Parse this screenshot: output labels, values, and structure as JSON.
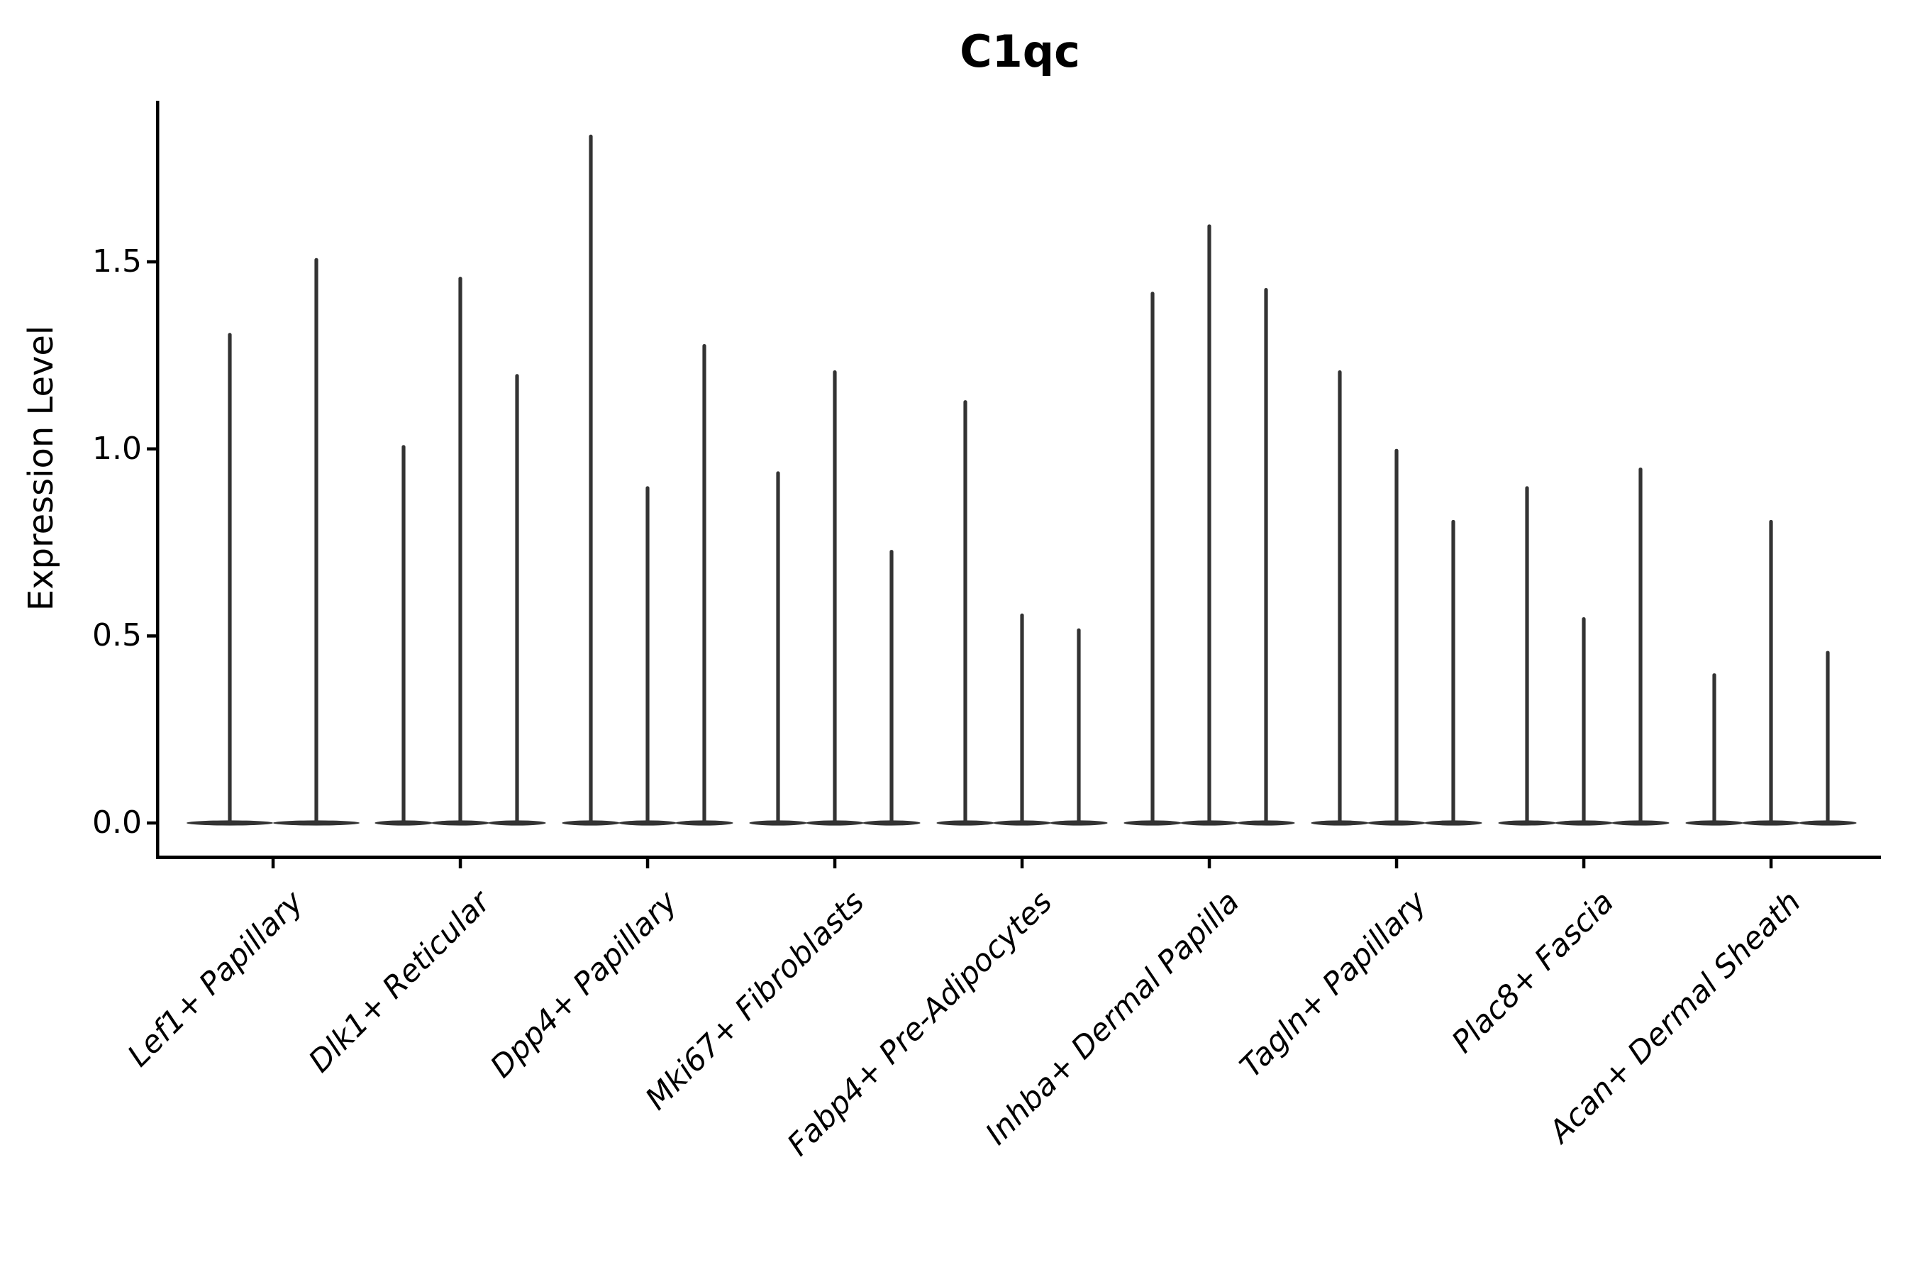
{
  "chart_data": {
    "type": "violin",
    "title": "C1qc",
    "xlabel": "",
    "ylabel": "Expression Level",
    "ytick_labels": [
      "0.0",
      "0.5",
      "1.0",
      "1.5"
    ],
    "ytick_values": [
      0.0,
      0.5,
      1.0,
      1.5
    ],
    "ylim": [
      -0.09,
      1.93
    ],
    "grid": false,
    "legend": "none",
    "style_note": "scanpy/seurat-style stacked violin: each cell type shows thin dark violins (bulk of density flat at 0 with a narrow spike up to the max expression)",
    "categories": [
      "Lef1+ Papillary",
      "Dlk1+ Reticular",
      "Dpp4+ Papillary",
      "Mki67+ Fibroblasts",
      "Fabp4+ Pre-Adipocytes",
      "Inhba+ Dermal Papilla",
      "Tagln+ Papillary",
      "Plac8+ Fascia",
      "Acan+ Dermal Sheath"
    ],
    "groups": [
      {
        "label": "Lef1+ Papillary",
        "violin_max_values": [
          1.31,
          1.51
        ]
      },
      {
        "label": "Dlk1+ Reticular",
        "violin_max_values": [
          1.01,
          1.46,
          1.2
        ]
      },
      {
        "label": "Dpp4+ Papillary",
        "violin_max_values": [
          1.84,
          0.9,
          1.28
        ]
      },
      {
        "label": "Mki67+ Fibroblasts",
        "violin_max_values": [
          0.94,
          1.21,
          0.73
        ]
      },
      {
        "label": "Fabp4+ Pre-Adipocytes",
        "violin_max_values": [
          1.13,
          0.56,
          0.52
        ]
      },
      {
        "label": "Inhba+ Dermal Papilla",
        "violin_max_values": [
          1.42,
          1.6,
          1.43
        ]
      },
      {
        "label": "Tagln+ Papillary",
        "violin_max_values": [
          1.21,
          1.0,
          0.81
        ]
      },
      {
        "label": "Plac8+ Fascia",
        "violin_max_values": [
          0.9,
          0.55,
          0.95
        ]
      },
      {
        "label": "Acan+ Dermal Sheath",
        "violin_max_values": [
          0.4,
          0.81,
          0.46
        ]
      }
    ],
    "colors": {
      "violin": "#333333",
      "axis": "#000000",
      "text": "#000000",
      "background": "#ffffff"
    }
  }
}
